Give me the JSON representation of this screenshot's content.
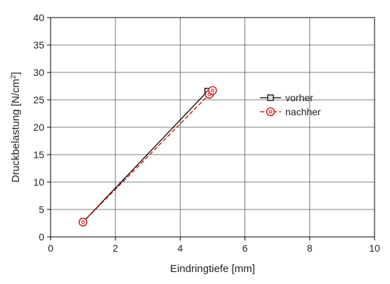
{
  "chart_data": {
    "type": "line",
    "title": "",
    "xlabel": "Eindringtiefe [mm]",
    "ylabel_main": "Druckbelastung [N/cm",
    "ylabel_sup": "2",
    "ylabel_end": "]",
    "xlim": [
      0,
      10
    ],
    "ylim": [
      0,
      40
    ],
    "xticks": [
      0,
      2,
      4,
      6,
      8,
      10
    ],
    "yticks": [
      0,
      5,
      10,
      15,
      20,
      25,
      30,
      35,
      40
    ],
    "grid": true,
    "legend_position": "right",
    "series": [
      {
        "name": "vorher",
        "color": "#000000",
        "dash": "solid",
        "marker": "square",
        "x": [
          1.0,
          4.85
        ],
        "y": [
          2.7,
          26.6
        ]
      },
      {
        "name": "nachher",
        "color": "#cc0000",
        "dash": "dashed",
        "marker": "circle",
        "x": [
          1.0,
          4.9,
          5.0
        ],
        "y": [
          2.7,
          26.0,
          26.7
        ]
      }
    ]
  }
}
